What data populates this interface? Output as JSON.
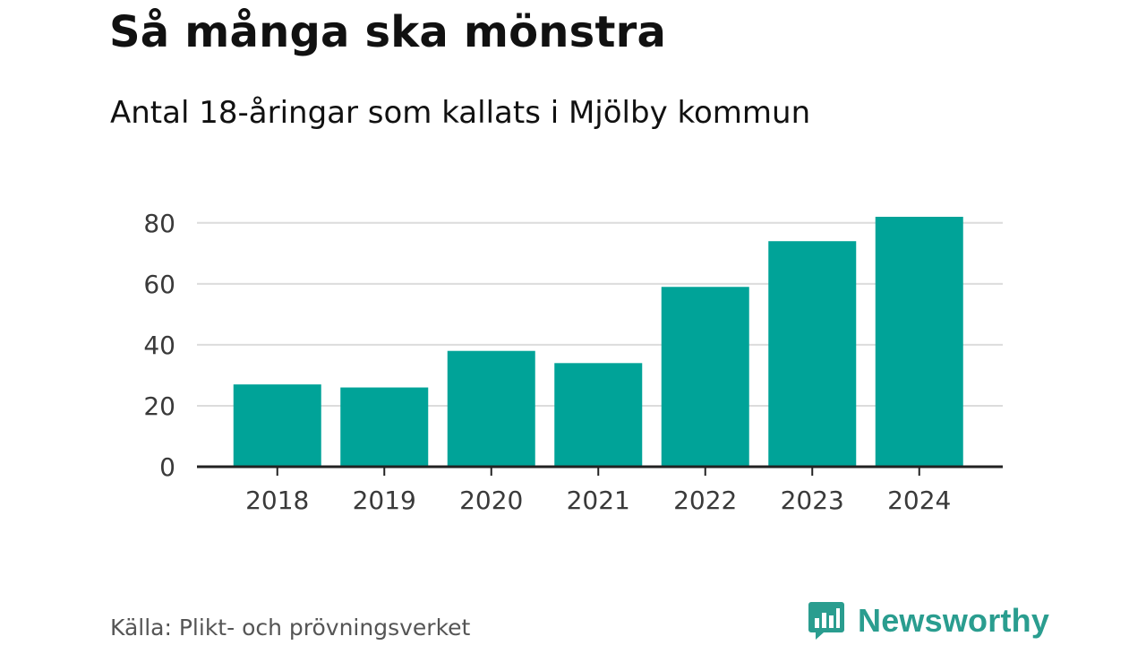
{
  "title": "Så många ska mönstra",
  "subtitle": "Antal 18-åringar som kallats i Mjölby kommun",
  "source": "Källa: Plikt- och prövningsverket",
  "brand": {
    "name": "Newsworthy",
    "color": "#2a9d8f",
    "icon": "bar-chart-speech-bubble-icon"
  },
  "chart_data": {
    "type": "bar",
    "categories": [
      "2018",
      "2019",
      "2020",
      "2021",
      "2022",
      "2023",
      "2024"
    ],
    "values": [
      27,
      26,
      38,
      34,
      59,
      74,
      82
    ],
    "y_ticks": [
      "0",
      "20",
      "40",
      "60",
      "80"
    ],
    "ylim": [
      0,
      82
    ],
    "grid": true,
    "bar_color": "#00a398",
    "grid_color": "#dcdcdc",
    "axis_color": "#222222"
  }
}
